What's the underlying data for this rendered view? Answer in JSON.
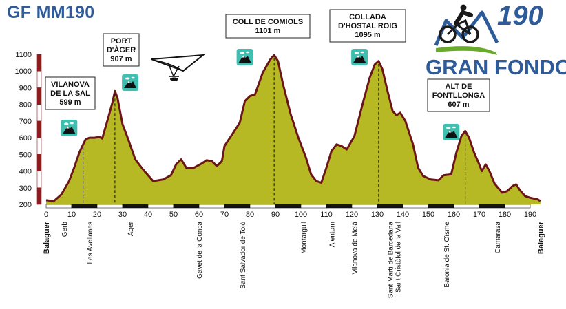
{
  "page_title": "GF MM190",
  "logo": {
    "number": "190",
    "text": "GRAN FONDO",
    "colors": {
      "blue": "#2e5b9a",
      "green": "#6aaa2a",
      "dark": "#1a1a1a"
    }
  },
  "colors": {
    "fill": "#b7b924",
    "outline": "#6b1518",
    "badge": "#3fbfb0",
    "title": "#2e5b9a"
  },
  "chart_data": {
    "type": "area",
    "title": "GF MM190",
    "xlim": [
      0,
      190
    ],
    "ylim": [
      200,
      1100
    ],
    "x_ticks": [
      0,
      10,
      20,
      30,
      40,
      50,
      60,
      70,
      80,
      90,
      100,
      110,
      120,
      130,
      140,
      150,
      160,
      170,
      180,
      190
    ],
    "y_ticks": [
      200,
      300,
      400,
      500,
      600,
      700,
      800,
      900,
      1000,
      1100
    ],
    "profile": [
      [
        0,
        225
      ],
      [
        3,
        220
      ],
      [
        6,
        260
      ],
      [
        9,
        340
      ],
      [
        11,
        420
      ],
      [
        13,
        510
      ],
      [
        14.5,
        560
      ],
      [
        15.5,
        590
      ],
      [
        17,
        600
      ],
      [
        19,
        600
      ],
      [
        21,
        605
      ],
      [
        22,
        595
      ],
      [
        24,
        700
      ],
      [
        26,
        810
      ],
      [
        27,
        880
      ],
      [
        28,
        840
      ],
      [
        30,
        680
      ],
      [
        32,
        600
      ],
      [
        35,
        470
      ],
      [
        38,
        410
      ],
      [
        42,
        340
      ],
      [
        46,
        350
      ],
      [
        49,
        375
      ],
      [
        51,
        440
      ],
      [
        53,
        470
      ],
      [
        55,
        420
      ],
      [
        58,
        420
      ],
      [
        61,
        445
      ],
      [
        63,
        465
      ],
      [
        65,
        460
      ],
      [
        67,
        430
      ],
      [
        69,
        460
      ],
      [
        70,
        550
      ],
      [
        73,
        620
      ],
      [
        76,
        690
      ],
      [
        78,
        820
      ],
      [
        80,
        850
      ],
      [
        82,
        860
      ],
      [
        85,
        990
      ],
      [
        88,
        1070
      ],
      [
        89.5,
        1095
      ],
      [
        91,
        1060
      ],
      [
        93,
        920
      ],
      [
        96,
        740
      ],
      [
        99,
        600
      ],
      [
        102,
        480
      ],
      [
        104,
        380
      ],
      [
        106,
        340
      ],
      [
        108,
        330
      ],
      [
        110,
        420
      ],
      [
        112,
        520
      ],
      [
        114,
        560
      ],
      [
        116,
        550
      ],
      [
        118,
        530
      ],
      [
        121,
        610
      ],
      [
        124,
        790
      ],
      [
        127,
        960
      ],
      [
        129,
        1040
      ],
      [
        130.5,
        1060
      ],
      [
        132,
        1010
      ],
      [
        134,
        880
      ],
      [
        136,
        760
      ],
      [
        137.5,
        735
      ],
      [
        139,
        750
      ],
      [
        141,
        700
      ],
      [
        144,
        560
      ],
      [
        146,
        420
      ],
      [
        148,
        370
      ],
      [
        151,
        350
      ],
      [
        154,
        345
      ],
      [
        156,
        375
      ],
      [
        159,
        380
      ],
      [
        161,
        510
      ],
      [
        163,
        610
      ],
      [
        164.5,
        640
      ],
      [
        166,
        600
      ],
      [
        168,
        510
      ],
      [
        170,
        440
      ],
      [
        171,
        400
      ],
      [
        172.5,
        440
      ],
      [
        174,
        400
      ],
      [
        176,
        325
      ],
      [
        179,
        270
      ],
      [
        181,
        280
      ],
      [
        183,
        310
      ],
      [
        184.5,
        320
      ],
      [
        186,
        285
      ],
      [
        188,
        250
      ],
      [
        190,
        240
      ],
      [
        193,
        230
      ],
      [
        194,
        220
      ]
    ],
    "summits": [
      {
        "name": "VILANOVA DE LA SAL",
        "lines": [
          "VILANOVA",
          "DE LA SAL",
          "599 m"
        ],
        "elevation": 599,
        "km": 14.5
      },
      {
        "name": "PORT D'ÀGER",
        "lines": [
          "PORT",
          "D'ÀGER",
          "907 m"
        ],
        "elevation": 907,
        "km": 27
      },
      {
        "name": "COLL DE COMIOLS",
        "lines": [
          "COLL DE COMIOLS",
          "1101 m"
        ],
        "elevation": 1101,
        "km": 89.5
      },
      {
        "name": "COLLADA D'HOSTAL ROIG",
        "lines": [
          "COLLADA",
          "D'HOSTAL ROIG",
          "1095 m"
        ],
        "elevation": 1095,
        "km": 130.5
      },
      {
        "name": "ALT DE FONTLLONGA",
        "lines": [
          "ALT DE",
          "FONTLLONGA",
          "607 m"
        ],
        "elevation": 607,
        "km": 164.5
      }
    ],
    "climb_markers_km": [
      9,
      33,
      78,
      123,
      159
    ],
    "towns": [
      {
        "name": "Balaguer",
        "km": 0,
        "bold": true
      },
      {
        "name": "Gerb",
        "km": 7
      },
      {
        "name": "Les Avellanes",
        "km": 17
      },
      {
        "name": "Àger",
        "km": 33
      },
      {
        "name": "Gavet de la Conca",
        "km": 60
      },
      {
        "name": "Sant Salvador de Toló",
        "km": 77
      },
      {
        "name": "Montargull",
        "km": 101
      },
      {
        "name": "Alentorn",
        "km": 112
      },
      {
        "name": "Vilanova de Meià",
        "km": 121
      },
      {
        "name": "Sant Martí de Barcedana",
        "km": 135
      },
      {
        "name": "Sant Cristòfol de la Vall",
        "km": 138
      },
      {
        "name": "Baronia de St. Oïsme",
        "km": 157
      },
      {
        "name": "Camarasa",
        "km": 177
      },
      {
        "name": "Balaguer",
        "km": 194,
        "bold": true
      }
    ]
  }
}
